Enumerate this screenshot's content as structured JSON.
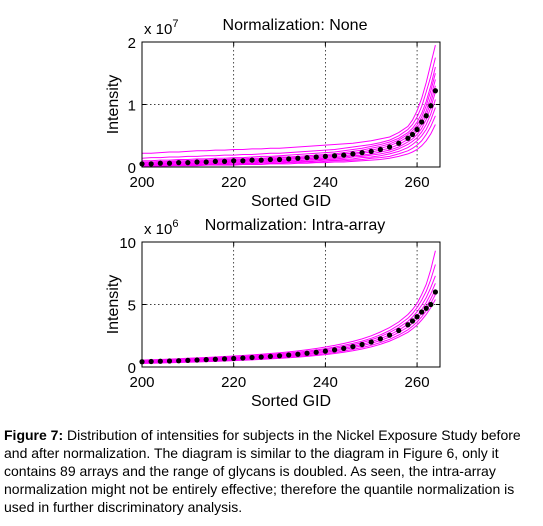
{
  "figure": {
    "caption_label": "Figure 7:",
    "caption_text": " Distribution of intensities for subjects in the Nickel Exposure Study before and after normalization. The diagram is similar to the diagram in Figure 6, only it contains 89 arrays and the range of glycans is doubled. As seen, the intra-array normalization might not be entirely effective; therefore the quantile normalization is used in further discriminatory analysis."
  },
  "colors": {
    "series": "#ff00ff",
    "median": "#000000",
    "grid": "#000000"
  },
  "chart_data": [
    {
      "type": "line",
      "title": "Normalization: None",
      "xlabel": "Sorted GID",
      "ylabel": "Intensity",
      "exponent_prefix": "x 10",
      "exponent_power": "7",
      "xlim": [
        200,
        265
      ],
      "ylim": [
        0,
        2
      ],
      "xticks": [
        200,
        220,
        240,
        260
      ],
      "yticks": [
        0,
        1,
        2
      ],
      "grid": "dotted",
      "x": [
        200,
        202,
        204,
        206,
        208,
        210,
        212,
        214,
        216,
        218,
        220,
        222,
        224,
        226,
        228,
        230,
        232,
        234,
        236,
        238,
        240,
        242,
        244,
        246,
        248,
        250,
        252,
        254,
        256,
        258,
        259,
        260,
        261,
        262,
        263,
        264
      ],
      "series": [
        {
          "values": [
            0.22,
            0.22,
            0.23,
            0.24,
            0.24,
            0.25,
            0.26,
            0.26,
            0.27,
            0.27,
            0.28,
            0.28,
            0.29,
            0.29,
            0.3,
            0.3,
            0.31,
            0.32,
            0.33,
            0.34,
            0.35,
            0.36,
            0.37,
            0.38,
            0.4,
            0.42,
            0.45,
            0.48,
            0.55,
            0.65,
            0.75,
            0.9,
            1.1,
            1.35,
            1.65,
            1.95
          ]
        },
        {
          "values": [
            0.14,
            0.15,
            0.15,
            0.16,
            0.16,
            0.17,
            0.17,
            0.18,
            0.18,
            0.19,
            0.19,
            0.2,
            0.2,
            0.21,
            0.22,
            0.22,
            0.23,
            0.24,
            0.25,
            0.26,
            0.27,
            0.28,
            0.3,
            0.32,
            0.34,
            0.36,
            0.39,
            0.43,
            0.5,
            0.6,
            0.68,
            0.8,
            0.97,
            1.2,
            1.45,
            1.75
          ]
        },
        {
          "values": [
            0.1,
            0.1,
            0.11,
            0.11,
            0.12,
            0.12,
            0.13,
            0.13,
            0.14,
            0.14,
            0.15,
            0.15,
            0.16,
            0.17,
            0.17,
            0.18,
            0.19,
            0.2,
            0.21,
            0.22,
            0.23,
            0.24,
            0.26,
            0.28,
            0.3,
            0.33,
            0.36,
            0.4,
            0.46,
            0.55,
            0.62,
            0.72,
            0.86,
            1.05,
            1.3,
            1.6
          ]
        },
        {
          "values": [
            0.08,
            0.08,
            0.09,
            0.09,
            0.1,
            0.1,
            0.11,
            0.11,
            0.12,
            0.12,
            0.13,
            0.13,
            0.14,
            0.14,
            0.15,
            0.16,
            0.16,
            0.17,
            0.18,
            0.19,
            0.2,
            0.21,
            0.23,
            0.25,
            0.27,
            0.3,
            0.33,
            0.37,
            0.43,
            0.52,
            0.58,
            0.67,
            0.8,
            0.98,
            1.22,
            1.5
          ]
        },
        {
          "values": [
            0.06,
            0.07,
            0.07,
            0.08,
            0.08,
            0.09,
            0.09,
            0.1,
            0.1,
            0.11,
            0.11,
            0.12,
            0.12,
            0.13,
            0.13,
            0.14,
            0.15,
            0.15,
            0.16,
            0.17,
            0.18,
            0.19,
            0.21,
            0.22,
            0.24,
            0.27,
            0.3,
            0.34,
            0.4,
            0.48,
            0.54,
            0.62,
            0.74,
            0.9,
            1.12,
            1.4
          ]
        },
        {
          "values": [
            0.05,
            0.05,
            0.06,
            0.06,
            0.07,
            0.07,
            0.08,
            0.08,
            0.09,
            0.09,
            0.1,
            0.1,
            0.11,
            0.11,
            0.12,
            0.12,
            0.13,
            0.14,
            0.14,
            0.15,
            0.16,
            0.17,
            0.18,
            0.2,
            0.22,
            0.24,
            0.27,
            0.3,
            0.36,
            0.44,
            0.5,
            0.57,
            0.68,
            0.83,
            1.03,
            1.3
          ]
        },
        {
          "values": [
            0.04,
            0.04,
            0.05,
            0.05,
            0.05,
            0.06,
            0.06,
            0.07,
            0.07,
            0.08,
            0.08,
            0.09,
            0.09,
            0.1,
            0.1,
            0.11,
            0.11,
            0.12,
            0.13,
            0.13,
            0.14,
            0.15,
            0.16,
            0.18,
            0.19,
            0.21,
            0.24,
            0.27,
            0.32,
            0.4,
            0.45,
            0.52,
            0.62,
            0.76,
            0.95,
            1.2
          ]
        },
        {
          "values": [
            0.03,
            0.03,
            0.04,
            0.04,
            0.04,
            0.05,
            0.05,
            0.05,
            0.06,
            0.06,
            0.07,
            0.07,
            0.08,
            0.08,
            0.09,
            0.09,
            0.1,
            0.1,
            0.11,
            0.12,
            0.12,
            0.13,
            0.14,
            0.16,
            0.17,
            0.19,
            0.21,
            0.24,
            0.29,
            0.36,
            0.41,
            0.47,
            0.56,
            0.68,
            0.85,
            1.08
          ]
        },
        {
          "values": [
            0.02,
            0.02,
            0.03,
            0.03,
            0.03,
            0.04,
            0.04,
            0.04,
            0.05,
            0.05,
            0.05,
            0.06,
            0.06,
            0.07,
            0.07,
            0.08,
            0.08,
            0.09,
            0.09,
            0.1,
            0.11,
            0.11,
            0.12,
            0.13,
            0.15,
            0.16,
            0.18,
            0.21,
            0.25,
            0.31,
            0.36,
            0.42,
            0.5,
            0.6,
            0.75,
            0.95
          ]
        },
        {
          "values": [
            0.02,
            0.02,
            0.02,
            0.02,
            0.03,
            0.03,
            0.03,
            0.03,
            0.04,
            0.04,
            0.04,
            0.05,
            0.05,
            0.05,
            0.06,
            0.06,
            0.07,
            0.07,
            0.08,
            0.08,
            0.09,
            0.1,
            0.1,
            0.11,
            0.12,
            0.14,
            0.15,
            0.17,
            0.21,
            0.26,
            0.3,
            0.35,
            0.42,
            0.52,
            0.65,
            0.82
          ]
        },
        {
          "values": [
            0.01,
            0.01,
            0.01,
            0.02,
            0.02,
            0.02,
            0.02,
            0.03,
            0.03,
            0.03,
            0.03,
            0.04,
            0.04,
            0.04,
            0.05,
            0.05,
            0.05,
            0.06,
            0.06,
            0.07,
            0.07,
            0.08,
            0.08,
            0.09,
            0.1,
            0.11,
            0.12,
            0.14,
            0.17,
            0.21,
            0.24,
            0.28,
            0.34,
            0.42,
            0.53,
            0.68
          ]
        }
      ],
      "markers": {
        "x": [
          200,
          202,
          204,
          206,
          208,
          210,
          212,
          214,
          216,
          218,
          220,
          222,
          224,
          226,
          228,
          230,
          232,
          234,
          236,
          238,
          240,
          242,
          244,
          246,
          248,
          250,
          252,
          254,
          256,
          258,
          259,
          260,
          261,
          262,
          263,
          264
        ],
        "values": [
          0.05,
          0.05,
          0.06,
          0.06,
          0.07,
          0.07,
          0.08,
          0.08,
          0.09,
          0.09,
          0.1,
          0.1,
          0.11,
          0.11,
          0.12,
          0.12,
          0.13,
          0.14,
          0.15,
          0.16,
          0.17,
          0.18,
          0.19,
          0.21,
          0.23,
          0.25,
          0.28,
          0.32,
          0.38,
          0.46,
          0.52,
          0.6,
          0.72,
          0.82,
          0.98,
          1.22
        ]
      }
    },
    {
      "type": "line",
      "title": "Normalization: Intra-array",
      "xlabel": "Sorted GID",
      "ylabel": "Intensity",
      "exponent_prefix": "x 10",
      "exponent_power": "6",
      "xlim": [
        200,
        265
      ],
      "ylim": [
        0,
        10
      ],
      "xticks": [
        200,
        220,
        240,
        260
      ],
      "yticks": [
        0,
        5,
        10
      ],
      "grid": "dotted",
      "x": [
        200,
        202,
        204,
        206,
        208,
        210,
        212,
        214,
        216,
        218,
        220,
        222,
        224,
        226,
        228,
        230,
        232,
        234,
        236,
        238,
        240,
        242,
        244,
        246,
        248,
        250,
        252,
        254,
        256,
        258,
        259,
        260,
        261,
        262,
        263,
        264
      ],
      "series": [
        {
          "values": [
            0.55,
            0.58,
            0.6,
            0.63,
            0.66,
            0.7,
            0.73,
            0.76,
            0.8,
            0.84,
            0.88,
            0.92,
            0.97,
            1.02,
            1.08,
            1.14,
            1.21,
            1.29,
            1.38,
            1.48,
            1.6,
            1.73,
            1.88,
            2.05,
            2.25,
            2.5,
            2.8,
            3.15,
            3.6,
            4.2,
            4.6,
            5.1,
            5.8,
            6.6,
            7.8,
            9.3
          ]
        },
        {
          "values": [
            0.5,
            0.52,
            0.55,
            0.58,
            0.6,
            0.63,
            0.66,
            0.7,
            0.73,
            0.77,
            0.8,
            0.84,
            0.89,
            0.94,
            0.99,
            1.05,
            1.12,
            1.19,
            1.27,
            1.36,
            1.47,
            1.59,
            1.73,
            1.89,
            2.07,
            2.3,
            2.58,
            2.92,
            3.35,
            3.9,
            4.28,
            4.75,
            5.35,
            6.05,
            7.0,
            8.2
          ]
        },
        {
          "values": [
            0.45,
            0.47,
            0.5,
            0.52,
            0.55,
            0.58,
            0.61,
            0.64,
            0.67,
            0.71,
            0.74,
            0.78,
            0.82,
            0.87,
            0.92,
            0.98,
            1.04,
            1.11,
            1.19,
            1.28,
            1.38,
            1.49,
            1.62,
            1.77,
            1.95,
            2.17,
            2.43,
            2.75,
            3.15,
            3.65,
            4.0,
            4.42,
            4.95,
            5.55,
            6.35,
            7.3
          ]
        },
        {
          "values": [
            0.4,
            0.42,
            0.45,
            0.47,
            0.5,
            0.52,
            0.55,
            0.58,
            0.61,
            0.65,
            0.68,
            0.72,
            0.76,
            0.8,
            0.85,
            0.9,
            0.96,
            1.03,
            1.1,
            1.18,
            1.27,
            1.38,
            1.5,
            1.65,
            1.82,
            2.02,
            2.27,
            2.57,
            2.95,
            3.42,
            3.74,
            4.12,
            4.6,
            5.15,
            5.85,
            6.7
          ]
        },
        {
          "values": [
            0.36,
            0.38,
            0.4,
            0.42,
            0.45,
            0.47,
            0.5,
            0.53,
            0.56,
            0.59,
            0.62,
            0.66,
            0.7,
            0.74,
            0.78,
            0.83,
            0.89,
            0.95,
            1.02,
            1.1,
            1.18,
            1.28,
            1.4,
            1.54,
            1.7,
            1.89,
            2.12,
            2.4,
            2.76,
            3.2,
            3.5,
            3.85,
            4.3,
            4.8,
            5.45,
            6.2
          ]
        },
        {
          "values": [
            0.32,
            0.34,
            0.36,
            0.38,
            0.4,
            0.42,
            0.45,
            0.48,
            0.5,
            0.53,
            0.56,
            0.6,
            0.63,
            0.67,
            0.71,
            0.76,
            0.81,
            0.87,
            0.93,
            1.0,
            1.08,
            1.17,
            1.28,
            1.41,
            1.56,
            1.74,
            1.96,
            2.22,
            2.56,
            2.98,
            3.26,
            3.6,
            4.02,
            4.5,
            5.1,
            5.8
          ]
        },
        {
          "values": [
            0.28,
            0.3,
            0.32,
            0.34,
            0.36,
            0.38,
            0.4,
            0.43,
            0.45,
            0.48,
            0.51,
            0.54,
            0.57,
            0.61,
            0.65,
            0.69,
            0.74,
            0.79,
            0.85,
            0.92,
            0.99,
            1.08,
            1.18,
            1.3,
            1.44,
            1.61,
            1.82,
            2.07,
            2.39,
            2.78,
            3.05,
            3.36,
            3.76,
            4.2,
            4.75,
            5.4
          ]
        }
      ],
      "markers": {
        "x": [
          200,
          202,
          204,
          206,
          208,
          210,
          212,
          214,
          216,
          218,
          220,
          222,
          224,
          226,
          228,
          230,
          232,
          234,
          236,
          238,
          240,
          242,
          244,
          246,
          248,
          250,
          252,
          254,
          256,
          258,
          259,
          260,
          261,
          262,
          263,
          264
        ],
        "values": [
          0.42,
          0.44,
          0.46,
          0.48,
          0.5,
          0.53,
          0.56,
          0.59,
          0.62,
          0.65,
          0.68,
          0.72,
          0.76,
          0.8,
          0.85,
          0.9,
          0.96,
          1.02,
          1.1,
          1.18,
          1.27,
          1.37,
          1.49,
          1.63,
          1.8,
          2.0,
          2.25,
          2.55,
          2.92,
          3.38,
          3.68,
          4.02,
          4.4,
          4.7,
          5.0,
          6.0
        ]
      }
    }
  ]
}
